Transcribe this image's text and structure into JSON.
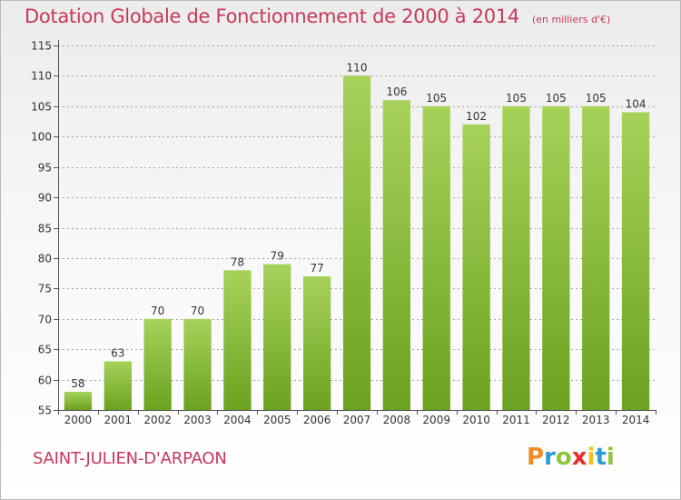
{
  "header": {
    "title": "Dotation Globale de Fonctionnement de 2000 à 2014",
    "unit_note": "(en milliers d'€)"
  },
  "footer": {
    "commune": "SAINT-JULIEN-D'ARPAON",
    "logo_letters": [
      "P",
      "r",
      "o",
      "x",
      "i",
      "t",
      "i"
    ],
    "logo_colors": [
      "#f08a24",
      "#2e9bd6",
      "#8cc63f",
      "#e62e2e",
      "#f6c11b",
      "#2e9bd6",
      "#8cc63f"
    ]
  },
  "colors": {
    "title": "#c8385a",
    "bar_light": "#a6d25a",
    "bar_dark": "#6ba21f",
    "grid": "#888888"
  },
  "chart_data": {
    "type": "bar",
    "categories": [
      "2000",
      "2001",
      "2002",
      "2003",
      "2004",
      "2005",
      "2006",
      "2007",
      "2008",
      "2009",
      "2010",
      "2011",
      "2012",
      "2013",
      "2014"
    ],
    "values": [
      58,
      63,
      70,
      70,
      78,
      79,
      77,
      110,
      106,
      105,
      102,
      105,
      105,
      105,
      104
    ],
    "data_labels": [
      "58",
      "63",
      "70",
      "70",
      "78",
      "79",
      "77",
      "110",
      "106",
      "105",
      "102",
      "105",
      "105",
      "105",
      "104"
    ],
    "y_ticks": [
      55,
      60,
      65,
      70,
      75,
      80,
      85,
      90,
      95,
      100,
      105,
      110,
      115
    ],
    "ylim": [
      55,
      115
    ],
    "grid": true,
    "legend": false
  }
}
